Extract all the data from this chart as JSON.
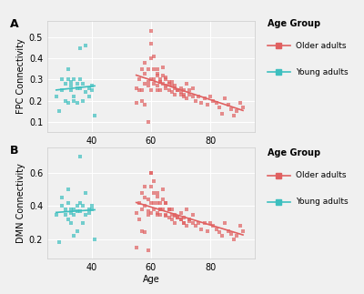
{
  "panel_A": {
    "label": "A",
    "ylabel": "FPC Connectivity",
    "xlabel": "Age",
    "young_age": [
      28,
      29,
      30,
      30,
      31,
      31,
      32,
      32,
      32,
      33,
      33,
      33,
      34,
      34,
      34,
      35,
      35,
      35,
      36,
      36,
      36,
      37,
      37,
      38,
      38,
      39,
      39,
      40,
      40,
      41
    ],
    "young_fpc": [
      0.22,
      0.15,
      0.25,
      0.3,
      0.2,
      0.28,
      0.19,
      0.3,
      0.35,
      0.29,
      0.25,
      0.27,
      0.2,
      0.22,
      0.3,
      0.26,
      0.28,
      0.19,
      0.26,
      0.3,
      0.45,
      0.28,
      0.2,
      0.46,
      0.24,
      0.26,
      0.22,
      0.25,
      0.27,
      0.13
    ],
    "older_age": [
      55,
      56,
      57,
      57,
      58,
      58,
      58,
      59,
      59,
      59,
      60,
      60,
      60,
      60,
      61,
      61,
      61,
      62,
      62,
      62,
      62,
      63,
      63,
      63,
      64,
      64,
      65,
      65,
      65,
      66,
      66,
      67,
      67,
      68,
      68,
      69,
      70,
      70,
      71,
      71,
      72,
      73,
      74,
      75,
      76,
      77,
      78,
      79,
      80,
      81,
      82,
      83,
      84,
      85,
      86,
      87,
      88,
      89,
      90,
      91,
      60,
      61,
      62,
      63,
      64,
      65,
      66,
      67,
      68,
      69,
      70,
      71,
      72,
      73,
      74,
      55,
      56,
      57,
      58,
      59
    ],
    "older_fpc": [
      0.26,
      0.3,
      0.25,
      0.35,
      0.28,
      0.33,
      0.38,
      0.29,
      0.27,
      0.35,
      0.25,
      0.3,
      0.4,
      0.47,
      0.28,
      0.35,
      0.3,
      0.27,
      0.33,
      0.25,
      0.35,
      0.29,
      0.25,
      0.3,
      0.28,
      0.32,
      0.27,
      0.26,
      0.3,
      0.25,
      0.28,
      0.24,
      0.29,
      0.23,
      0.27,
      0.25,
      0.23,
      0.26,
      0.22,
      0.25,
      0.21,
      0.23,
      0.22,
      0.2,
      0.22,
      0.19,
      0.21,
      0.18,
      0.22,
      0.2,
      0.19,
      0.17,
      0.14,
      0.21,
      0.18,
      0.16,
      0.13,
      0.15,
      0.19,
      0.17,
      0.53,
      0.41,
      0.32,
      0.29,
      0.36,
      0.31,
      0.29,
      0.27,
      0.26,
      0.25,
      0.24,
      0.23,
      0.28,
      0.25,
      0.26,
      0.19,
      0.25,
      0.2,
      0.18,
      0.1
    ],
    "ylim": [
      0.05,
      0.58
    ],
    "yticks": [
      0.1,
      0.2,
      0.3,
      0.4,
      0.5
    ],
    "xlim": [
      25,
      95
    ],
    "xticks": [
      40,
      60,
      80
    ]
  },
  "panel_B": {
    "label": "B",
    "ylabel": "DMN Connectivity",
    "xlabel": "Age",
    "young_age": [
      28,
      29,
      30,
      30,
      31,
      31,
      32,
      32,
      32,
      33,
      33,
      33,
      34,
      34,
      34,
      35,
      35,
      35,
      36,
      36,
      36,
      37,
      37,
      38,
      38,
      39,
      39,
      40,
      40,
      41
    ],
    "young_dmn": [
      0.35,
      0.18,
      0.4,
      0.45,
      0.35,
      0.38,
      0.32,
      0.42,
      0.5,
      0.36,
      0.38,
      0.3,
      0.22,
      0.35,
      0.38,
      0.37,
      0.4,
      0.25,
      0.37,
      0.42,
      0.7,
      0.4,
      0.3,
      0.48,
      0.35,
      0.38,
      0.36,
      0.38,
      0.4,
      0.2
    ],
    "older_age": [
      55,
      56,
      57,
      57,
      58,
      58,
      58,
      59,
      59,
      59,
      60,
      60,
      60,
      60,
      61,
      61,
      61,
      62,
      62,
      62,
      62,
      63,
      63,
      63,
      64,
      64,
      65,
      65,
      65,
      66,
      66,
      67,
      67,
      68,
      68,
      69,
      70,
      70,
      71,
      71,
      72,
      73,
      74,
      75,
      76,
      77,
      78,
      79,
      80,
      81,
      82,
      83,
      84,
      85,
      86,
      87,
      88,
      89,
      90,
      91,
      60,
      61,
      62,
      63,
      64,
      65,
      66,
      67,
      68,
      69,
      70,
      71,
      72,
      73,
      74,
      55,
      56,
      57,
      58,
      59
    ],
    "older_dmn": [
      0.36,
      0.42,
      0.38,
      0.48,
      0.4,
      0.45,
      0.52,
      0.37,
      0.35,
      0.44,
      0.36,
      0.42,
      0.52,
      0.6,
      0.38,
      0.48,
      0.42,
      0.35,
      0.46,
      0.36,
      0.48,
      0.38,
      0.35,
      0.42,
      0.38,
      0.44,
      0.35,
      0.34,
      0.42,
      0.33,
      0.38,
      0.32,
      0.38,
      0.3,
      0.35,
      0.33,
      0.32,
      0.36,
      0.3,
      0.33,
      0.28,
      0.31,
      0.3,
      0.28,
      0.3,
      0.26,
      0.3,
      0.25,
      0.3,
      0.28,
      0.26,
      0.24,
      0.22,
      0.3,
      0.25,
      0.23,
      0.2,
      0.22,
      0.28,
      0.25,
      0.6,
      0.55,
      0.42,
      0.38,
      0.5,
      0.42,
      0.38,
      0.35,
      0.34,
      0.33,
      0.32,
      0.3,
      0.38,
      0.32,
      0.35,
      0.15,
      0.32,
      0.25,
      0.24,
      0.13
    ],
    "ylim": [
      0.08,
      0.76
    ],
    "yticks": [
      0.2,
      0.4,
      0.6
    ],
    "xlim": [
      25,
      95
    ],
    "xticks": [
      40,
      60,
      80
    ]
  },
  "colors": {
    "older": "#E06060",
    "young": "#3DBFBF"
  },
  "marker_size": 8,
  "alpha": 0.7,
  "background_color": "#f0f0f0",
  "panel_bg": "#f5f5f5"
}
